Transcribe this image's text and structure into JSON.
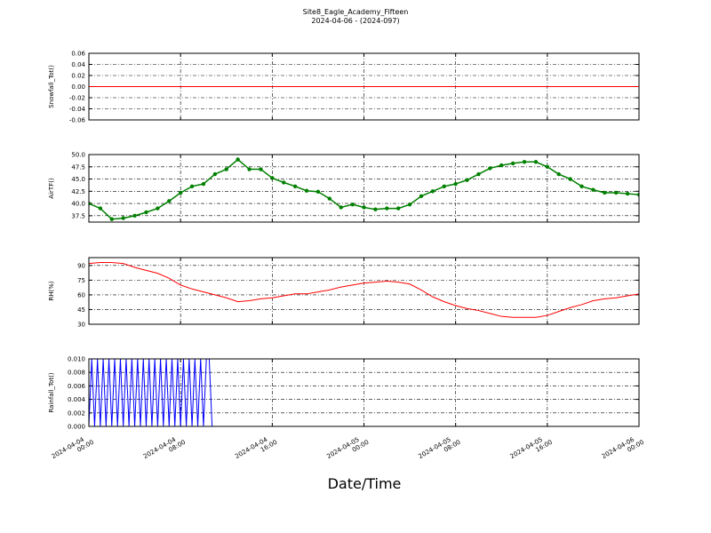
{
  "figure": {
    "title": "Site8_Eagle_Academy_Fifteen",
    "subtitle": "2024-04-06 - (2024-097)",
    "x_label": "Date/Time"
  },
  "chart_data": [
    {
      "type": "line",
      "y_label": "Snowfall_Tot()",
      "color": "#ff0000",
      "x": [
        "2024-04-04 00:00",
        "2024-04-06 00:00"
      ],
      "values": [
        0,
        0
      ],
      "xlim": [
        "2024-04-04 00:00",
        "2024-04-06 00:00"
      ],
      "ylim": [
        -0.06,
        0.06
      ],
      "yticks": [
        -0.06,
        -0.04,
        -0.02,
        {
          "value": 0,
          "label": "0.00"
        },
        0.02,
        0.04,
        0.06
      ],
      "grid": true
    },
    {
      "type": "line",
      "y_label": "AirTF()",
      "color": "#008000",
      "marker": true,
      "x": [
        "2024-04-04 00:00",
        "2024-04-04 01:00",
        "2024-04-04 02:00",
        "2024-04-04 03:00",
        "2024-04-04 04:00",
        "2024-04-04 05:00",
        "2024-04-04 06:00",
        "2024-04-04 07:00",
        "2024-04-04 08:00",
        "2024-04-04 09:00",
        "2024-04-04 10:00",
        "2024-04-04 11:00",
        "2024-04-04 12:00",
        "2024-04-04 13:00",
        "2024-04-04 14:00",
        "2024-04-04 15:00",
        "2024-04-04 16:00",
        "2024-04-04 17:00",
        "2024-04-04 18:00",
        "2024-04-04 19:00",
        "2024-04-04 20:00",
        "2024-04-04 21:00",
        "2024-04-04 22:00",
        "2024-04-04 23:00",
        "2024-04-05 00:00",
        "2024-04-05 01:00",
        "2024-04-05 02:00",
        "2024-04-05 03:00",
        "2024-04-05 04:00",
        "2024-04-05 05:00",
        "2024-04-05 06:00",
        "2024-04-05 07:00",
        "2024-04-05 08:00",
        "2024-04-05 09:00",
        "2024-04-05 10:00",
        "2024-04-05 11:00",
        "2024-04-05 12:00",
        "2024-04-05 13:00",
        "2024-04-05 14:00",
        "2024-04-05 15:00",
        "2024-04-05 16:00",
        "2024-04-05 17:00",
        "2024-04-05 18:00",
        "2024-04-05 19:00",
        "2024-04-05 20:00",
        "2024-04-05 21:00",
        "2024-04-05 22:00",
        "2024-04-05 23:00",
        "2024-04-06 00:00"
      ],
      "values": [
        40,
        39,
        36.8,
        37,
        37.5,
        38.2,
        39,
        40.5,
        42.2,
        43.5,
        44,
        46,
        47,
        49,
        47,
        47,
        45.2,
        44.3,
        43.5,
        42.6,
        42.4,
        41,
        39.2,
        39.8,
        39.2,
        38.8,
        39,
        39,
        39.8,
        41.5,
        42.5,
        43.5,
        44,
        44.8,
        46,
        47.2,
        47.8,
        48.2,
        48.5,
        48.5,
        47.5,
        46,
        45,
        43.5,
        42.8,
        42.2,
        42.2,
        42,
        41.8
      ],
      "xlim": [
        "2024-04-04 00:00",
        "2024-04-06 00:00"
      ],
      "ylim": [
        36.2,
        50
      ],
      "yticks": [
        37.5,
        {
          "value": 40,
          "label": "40.0"
        },
        42.5,
        {
          "value": 45,
          "label": "45.0"
        },
        47.5,
        {
          "value": 50,
          "label": "50.0"
        }
      ],
      "grid": true
    },
    {
      "type": "line",
      "y_label": "RH(%)",
      "color": "#ff0000",
      "x": [
        "2024-04-04 00:00",
        "2024-04-04 01:00",
        "2024-04-04 02:00",
        "2024-04-04 03:00",
        "2024-04-04 04:00",
        "2024-04-04 05:00",
        "2024-04-04 06:00",
        "2024-04-04 07:00",
        "2024-04-04 08:00",
        "2024-04-04 09:00",
        "2024-04-04 10:00",
        "2024-04-04 11:00",
        "2024-04-04 12:00",
        "2024-04-04 13:00",
        "2024-04-04 14:00",
        "2024-04-04 15:00",
        "2024-04-04 16:00",
        "2024-04-04 17:00",
        "2024-04-04 18:00",
        "2024-04-04 19:00",
        "2024-04-04 20:00",
        "2024-04-04 21:00",
        "2024-04-04 22:00",
        "2024-04-04 23:00",
        "2024-04-05 00:00",
        "2024-04-05 01:00",
        "2024-04-05 02:00",
        "2024-04-05 03:00",
        "2024-04-05 04:00",
        "2024-04-05 05:00",
        "2024-04-05 06:00",
        "2024-04-05 07:00",
        "2024-04-05 08:00",
        "2024-04-05 09:00",
        "2024-04-05 10:00",
        "2024-04-05 11:00",
        "2024-04-05 12:00",
        "2024-04-05 13:00",
        "2024-04-05 14:00",
        "2024-04-05 15:00",
        "2024-04-05 16:00",
        "2024-04-05 17:00",
        "2024-04-05 18:00",
        "2024-04-05 19:00",
        "2024-04-05 20:00",
        "2024-04-05 21:00",
        "2024-04-05 22:00",
        "2024-04-05 23:00",
        "2024-04-06 00:00"
      ],
      "values": [
        92,
        93,
        93,
        92,
        88,
        85,
        82,
        77,
        70,
        66,
        63,
        60,
        57,
        53,
        54,
        56,
        57,
        59,
        61,
        61,
        63,
        65,
        68,
        70,
        72,
        73,
        74,
        73,
        71,
        65,
        58,
        53,
        49,
        46,
        44,
        41,
        38,
        37,
        37,
        37,
        39,
        43,
        47,
        50,
        54,
        56,
        57,
        59,
        61
      ],
      "xlim": [
        "2024-04-04 00:00",
        "2024-04-06 00:00"
      ],
      "ylim": [
        30,
        98
      ],
      "yticks": [
        30,
        45,
        60,
        75,
        90
      ],
      "grid": true
    },
    {
      "type": "line",
      "y_label": "Rainfall_Tot()",
      "color": "#0000ff",
      "x": [
        "2024-04-04 00:00",
        "2024-04-04 00:15",
        "2024-04-04 00:30",
        "2024-04-04 00:45",
        "2024-04-04 01:00",
        "2024-04-04 01:15",
        "2024-04-04 01:30",
        "2024-04-04 01:45",
        "2024-04-04 02:00",
        "2024-04-04 02:15",
        "2024-04-04 02:30",
        "2024-04-04 02:45",
        "2024-04-04 03:00",
        "2024-04-04 03:15",
        "2024-04-04 03:30",
        "2024-04-04 03:45",
        "2024-04-04 04:00",
        "2024-04-04 04:15",
        "2024-04-04 04:30",
        "2024-04-04 04:45",
        "2024-04-04 05:00",
        "2024-04-04 05:15",
        "2024-04-04 05:30",
        "2024-04-04 05:45",
        "2024-04-04 06:00",
        "2024-04-04 06:15",
        "2024-04-04 06:30",
        "2024-04-04 06:45",
        "2024-04-04 07:00",
        "2024-04-04 07:15",
        "2024-04-04 07:30",
        "2024-04-04 07:45",
        "2024-04-04 08:00",
        "2024-04-04 08:15",
        "2024-04-04 08:30",
        "2024-04-04 08:45",
        "2024-04-04 09:00",
        "2024-04-04 09:15",
        "2024-04-04 09:30",
        "2024-04-04 09:45",
        "2024-04-04 10:00",
        "2024-04-04 10:15",
        "2024-04-04 10:30",
        "2024-04-04 10:45"
      ],
      "values": [
        0,
        0.01,
        0,
        0.01,
        0,
        0.01,
        0,
        0.01,
        0,
        0.01,
        0,
        0.01,
        0,
        0.01,
        0,
        0.01,
        0,
        0.01,
        0,
        0.01,
        0,
        0.01,
        0,
        0.01,
        0,
        0.01,
        0,
        0.01,
        0,
        0.01,
        0,
        0.01,
        0,
        0.01,
        0,
        0.01,
        0,
        0.01,
        0,
        0.01,
        0,
        0.01,
        0.01,
        0
      ],
      "xlim": [
        "2024-04-04 00:00",
        "2024-04-06 00:00"
      ],
      "ylim": [
        0,
        0.01
      ],
      "xticks": [
        "2024-04-04 00:00",
        "2024-04-04 08:00",
        "2024-04-04 16:00",
        "2024-04-05 00:00",
        "2024-04-05 08:00",
        "2024-04-05 16:00",
        "2024-04-06 00:00"
      ],
      "yticks": [
        {
          "value": 0,
          "label": "0.000"
        },
        0.002,
        0.004,
        0.006,
        0.008,
        {
          "value": 0.01,
          "label": "0.010"
        }
      ],
      "grid": true
    }
  ]
}
